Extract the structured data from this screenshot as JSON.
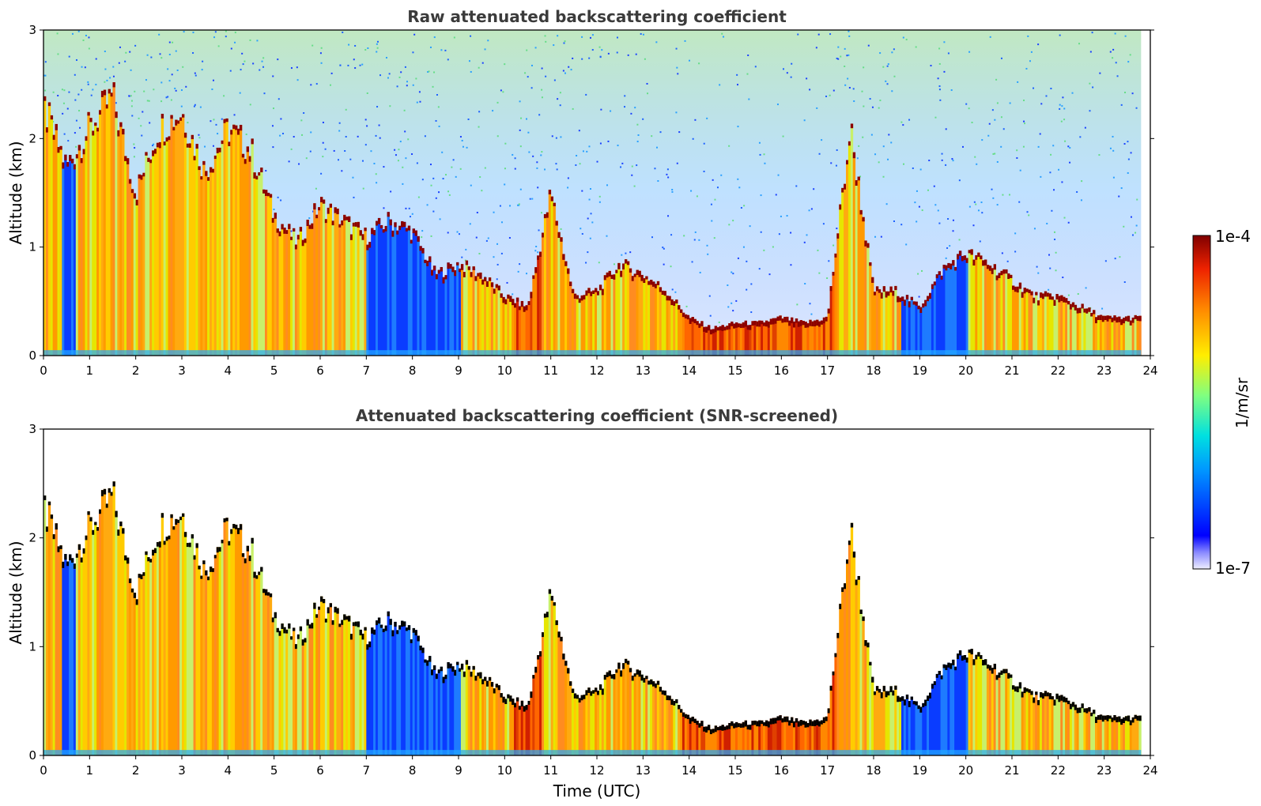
{
  "chart_data": [
    {
      "type": "heatmap",
      "title": "Raw attenuated backscattering coefficient",
      "xlabel": "",
      "ylabel": "Altitude (km)",
      "xlim": [
        0,
        24
      ],
      "ylim": [
        0,
        3
      ],
      "xticks": [
        "0",
        "1",
        "2",
        "3",
        "4",
        "5",
        "6",
        "7",
        "8",
        "9",
        "10",
        "11",
        "12",
        "13",
        "14",
        "15",
        "16",
        "17",
        "18",
        "19",
        "20",
        "21",
        "22",
        "23",
        "24"
      ],
      "yticks": [
        "0",
        "1",
        "2",
        "3"
      ],
      "grid": false,
      "colorscale": "jet",
      "layer_top_km": [
        [
          0,
          2.3
        ],
        [
          0.5,
          1.75
        ],
        [
          1,
          2.1
        ],
        [
          1.5,
          2.4
        ],
        [
          2,
          1.5
        ],
        [
          2.5,
          2.1
        ],
        [
          3,
          2.25
        ],
        [
          3.5,
          1.7
        ],
        [
          4,
          2.1
        ],
        [
          4.5,
          1.9
        ],
        [
          5,
          1.3
        ],
        [
          5.5,
          1.05
        ],
        [
          6,
          1.4
        ],
        [
          6.5,
          1.25
        ],
        [
          7,
          1.1
        ],
        [
          7.5,
          1.25
        ],
        [
          8,
          1.15
        ],
        [
          8.5,
          0.75
        ],
        [
          9,
          0.85
        ],
        [
          9.5,
          0.75
        ],
        [
          10,
          0.55
        ],
        [
          10.5,
          0.45
        ],
        [
          11,
          1.5
        ],
        [
          11.5,
          0.55
        ],
        [
          12,
          0.6
        ],
        [
          12.5,
          0.85
        ],
        [
          13,
          0.75
        ],
        [
          13.5,
          0.6
        ],
        [
          14,
          0.35
        ],
        [
          14.5,
          0.25
        ],
        [
          15,
          0.3
        ],
        [
          15.5,
          0.3
        ],
        [
          16,
          0.35
        ],
        [
          16.5,
          0.3
        ],
        [
          17,
          0.35
        ],
        [
          17.5,
          2.1
        ],
        [
          18,
          0.6
        ],
        [
          18.5,
          0.6
        ],
        [
          19,
          0.45
        ],
        [
          19.5,
          0.8
        ],
        [
          20,
          0.95
        ],
        [
          20.5,
          0.85
        ],
        [
          21,
          0.7
        ],
        [
          21.5,
          0.55
        ],
        [
          22,
          0.55
        ],
        [
          22.5,
          0.45
        ],
        [
          23,
          0.35
        ],
        [
          23.5,
          0.35
        ],
        [
          23.8,
          0.35
        ]
      ],
      "blue_low_signal_periods_utc": [
        [
          0.4,
          0.7
        ],
        [
          7.0,
          9.0
        ],
        [
          18.6,
          20.0
        ]
      ],
      "data_end_utc": 23.8
    },
    {
      "type": "heatmap",
      "title": "Attenuated backscattering coefficient (SNR-screened)",
      "xlabel": "Time (UTC)",
      "ylabel": "Altitude (km)",
      "xlim": [
        0,
        24
      ],
      "ylim": [
        0,
        3
      ],
      "xticks": [
        "0",
        "1",
        "2",
        "3",
        "4",
        "5",
        "6",
        "7",
        "8",
        "9",
        "10",
        "11",
        "12",
        "13",
        "14",
        "15",
        "16",
        "17",
        "18",
        "19",
        "20",
        "21",
        "22",
        "23",
        "24"
      ],
      "yticks": [
        "0",
        "1",
        "2",
        "3"
      ],
      "grid": false,
      "colorscale": "jet"
    }
  ],
  "colorbar": {
    "label": "1/m/sr",
    "max_label": "1e-4",
    "min_label": "1e-7",
    "scale": "log"
  }
}
